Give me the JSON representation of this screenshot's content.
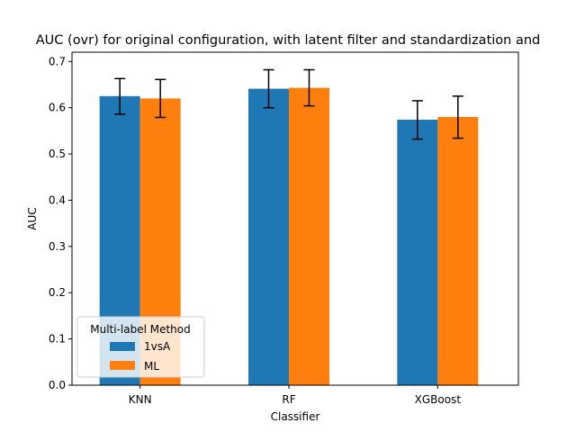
{
  "chart_data": {
    "type": "bar",
    "title": "AUC (ovr) for original configuration, with latent filter and standardization and",
    "xlabel": "Classifier",
    "ylabel": "AUC",
    "categories": [
      "KNN",
      "RF",
      "XGBoost"
    ],
    "ylim": [
      0,
      0.72
    ],
    "yticks": [
      "0.0",
      "0.1",
      "0.2",
      "0.3",
      "0.4",
      "0.5",
      "0.6",
      "0.7"
    ],
    "grid": false,
    "legend": {
      "title": "Multi-label Method",
      "placement": "lower-left"
    },
    "series": [
      {
        "name": "1vsA",
        "color": "#1f77b4",
        "values": [
          0.625,
          0.641,
          0.574
        ],
        "error_low": [
          0.586,
          0.6,
          0.532
        ],
        "error_high": [
          0.663,
          0.682,
          0.615
        ]
      },
      {
        "name": "ML",
        "color": "#ff7f0e",
        "values": [
          0.62,
          0.643,
          0.58
        ],
        "error_low": [
          0.579,
          0.604,
          0.534
        ],
        "error_high": [
          0.661,
          0.682,
          0.625
        ]
      }
    ]
  }
}
